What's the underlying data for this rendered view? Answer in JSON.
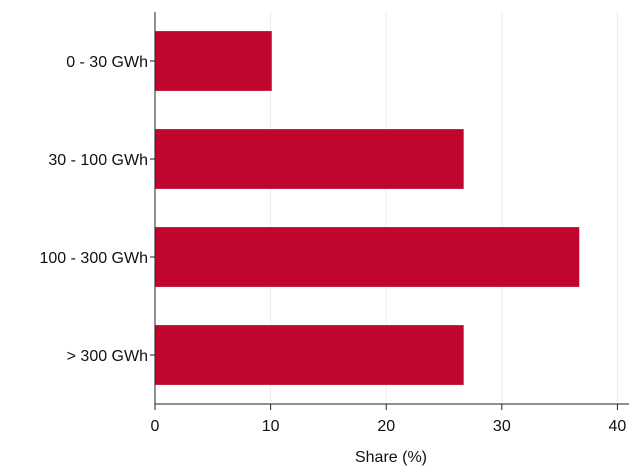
{
  "chart_data": {
    "type": "bar",
    "orientation": "horizontal",
    "categories": [
      "0 - 30 GWh",
      "30 - 100 GWh",
      "100 - 300 GWh",
      "> 300 GWh"
    ],
    "values": [
      10.1,
      26.7,
      36.7,
      26.7
    ],
    "xlabel": "Share (%)",
    "ylabel": "",
    "xlim": [
      0,
      41
    ],
    "xticks": [
      0,
      10,
      20,
      30,
      40
    ],
    "grid": "vertical",
    "bar_color": "#c0062f"
  }
}
